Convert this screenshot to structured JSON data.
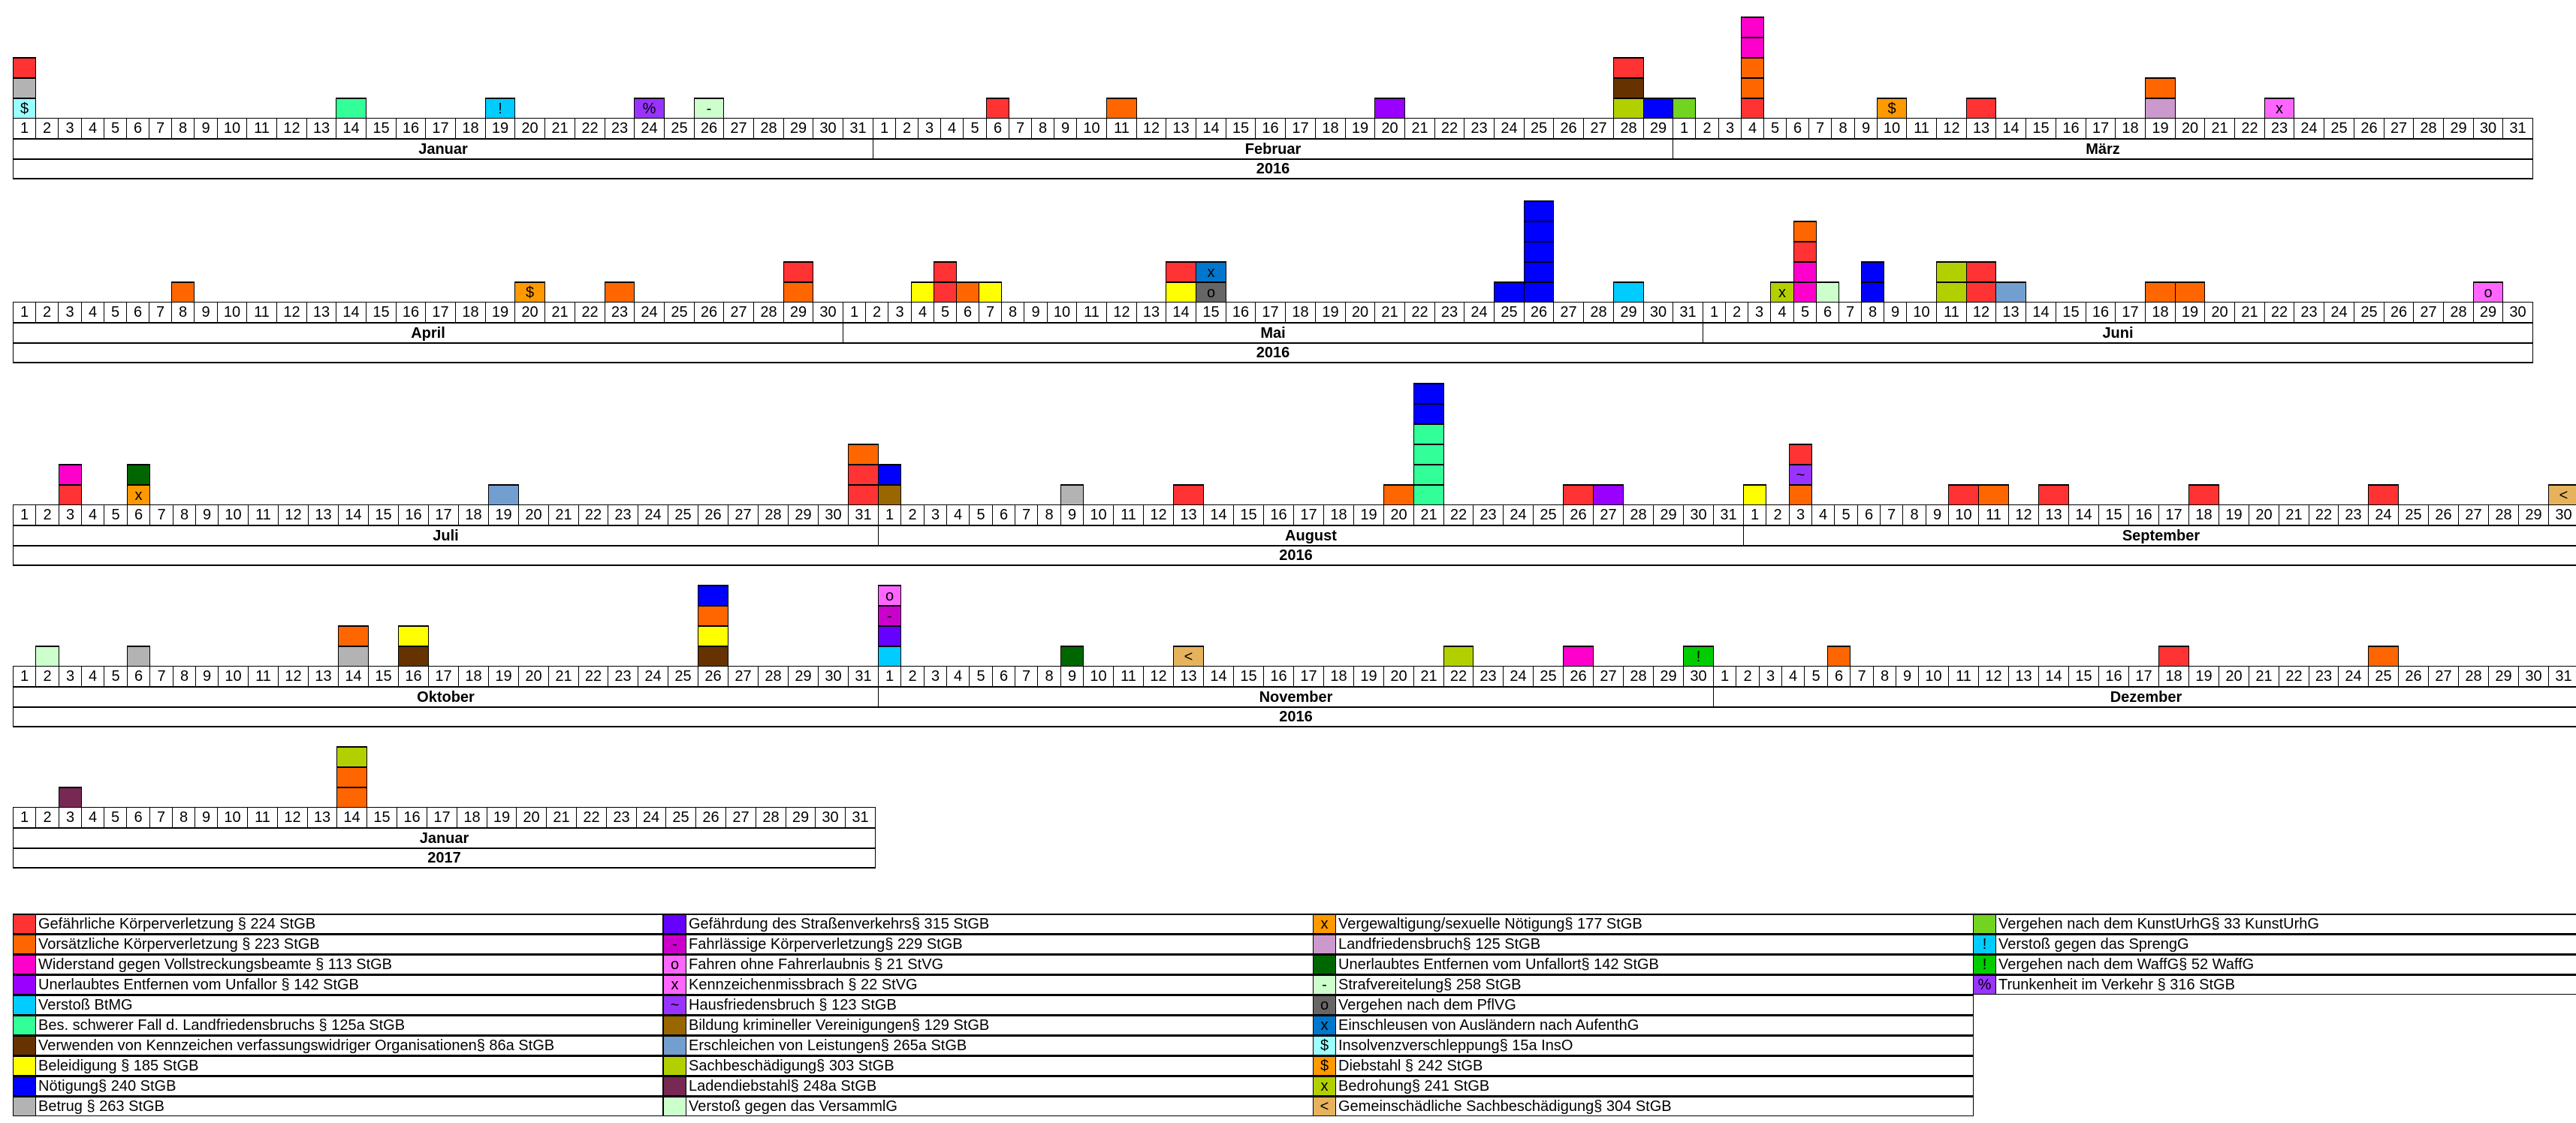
{
  "chart_data": {
    "type": "table",
    "title": "",
    "categories_legend": [
      {
        "id": "gkv",
        "label": "Gefährliche Körperverletzung § 224 StGB",
        "color": "#ff3333",
        "mark": ""
      },
      {
        "id": "vkv",
        "label": "Vorsätzliche Körperverletzung § 223 StGB",
        "color": "#ff6600",
        "mark": ""
      },
      {
        "id": "wvb",
        "label": "Widerstand gegen Vollstreckungsbeamte § 113 StGB",
        "color": "#ff00cc",
        "mark": ""
      },
      {
        "id": "ueu",
        "label": "Unerlaubtes Entfernen vom Unfallor § 142 StGB",
        "color": "#9900ff",
        "mark": ""
      },
      {
        "id": "btm",
        "label": "Verstoß BtMG",
        "color": "#00ccff",
        "mark": ""
      },
      {
        "id": "lfb",
        "label": "Bes. schwerer Fall d. Landfriedensbruchs § 125a StGB",
        "color": "#33ff99",
        "mark": ""
      },
      {
        "id": "kvo",
        "label": "Verwenden von Kennzeichen verfassungswidriger Organisationen§ 86a StGB",
        "color": "#663300",
        "mark": ""
      },
      {
        "id": "bel",
        "label": "Beleidigung § 185 StGB",
        "color": "#ffff00",
        "mark": ""
      },
      {
        "id": "noe",
        "label": "Nötigung§ 240 StGB",
        "color": "#0000ff",
        "mark": ""
      },
      {
        "id": "btr",
        "label": "Betrug § 263 StGB",
        "color": "#b3b3b3",
        "mark": ""
      },
      {
        "id": "gsv",
        "label": "Gefährdung des Straßenverkehrs§ 315 StGB",
        "color": "#6600ff",
        "mark": ""
      },
      {
        "id": "fkv",
        "label": "Fahrlässige Körperverletzung§ 229 StGB",
        "color": "#cc00cc",
        "mark": "-"
      },
      {
        "id": "fof",
        "label": "Fahren ohne Fahrerlaubnis § 21 StVG",
        "color": "#ff66ff",
        "mark": "o"
      },
      {
        "id": "kzm",
        "label": "Kennzeichenmissbrach § 22 StVG",
        "color": "#ff66ff",
        "mark": "x"
      },
      {
        "id": "hfb",
        "label": "Hausfriedensbruch § 123 StGB",
        "color": "#9933ff",
        "mark": "~"
      },
      {
        "id": "bkv",
        "label": "Bildung krimineller Vereinigungen§ 129 StGB",
        "color": "#996600",
        "mark": ""
      },
      {
        "id": "evl",
        "label": "Erschleichen von Leistungen§ 265a StGB",
        "color": "#729fcf",
        "mark": ""
      },
      {
        "id": "sbs",
        "label": "Sachbeschädigung§ 303 StGB",
        "color": "#b2d000",
        "mark": ""
      },
      {
        "id": "ldb",
        "label": "Ladendiebstahl§ 248a StGB",
        "color": "#772953",
        "mark": ""
      },
      {
        "id": "vvg",
        "label": "Verstoß gegen das VersammlG",
        "color": "#ccffcc",
        "mark": ""
      },
      {
        "id": "vgn",
        "label": "Vergewaltigung/sexuelle Nötigung§ 177 StGB",
        "color": "#ff9900",
        "mark": "x"
      },
      {
        "id": "lfr",
        "label": "Landfriedensbruch§ 125 StGB",
        "color": "#cc99cc",
        "mark": ""
      },
      {
        "id": "ueo",
        "label": "Unerlaubtes Entfernen vom Unfallort§ 142 StGB",
        "color": "#006600",
        "mark": ""
      },
      {
        "id": "stv",
        "label": "Strafvereitelung§ 258 StGB",
        "color": "#ccffcc",
        "mark": "-"
      },
      {
        "id": "pfl",
        "label": "Vergehen nach dem PflVG",
        "color": "#666666",
        "mark": "o"
      },
      {
        "id": "eaa",
        "label": "Einschleusen von Ausländern nach AufenthG",
        "color": "#0077cc",
        "mark": "x"
      },
      {
        "id": "ins",
        "label": "Insolvenzverschleppung§ 15a InsO",
        "color": "#99ffff",
        "mark": "$"
      },
      {
        "id": "dst",
        "label": "Diebstahl § 242 StGB",
        "color": "#ff9900",
        "mark": "$"
      },
      {
        "id": "bdr",
        "label": "Bedrohung§ 241 StGB",
        "color": "#b2d000",
        "mark": "x"
      },
      {
        "id": "gsb",
        "label": "Gemeinschädliche Sachbeschädigung§ 304 StGB",
        "color": "#e6b35c",
        "mark": "<"
      },
      {
        "id": "kug",
        "label": "Vergehen nach dem KunstUrhG§ 33 KunstUrhG",
        "color": "#72d321",
        "mark": ""
      },
      {
        "id": "spg",
        "label": "Verstoß gegen das SprengG",
        "color": "#00ccff",
        "mark": "!"
      },
      {
        "id": "wfg",
        "label": "Vergehen nach dem WaffG§ 52 WaffG",
        "color": "#00cc00",
        "mark": "!"
      },
      {
        "id": "tiv",
        "label": "Trunkenheit im Verkehr § 316 StGB",
        "color": "#9933ff",
        "mark": "%"
      }
    ],
    "legend_columns": [
      [
        "gkv",
        "vkv",
        "wvb",
        "ueu",
        "btm",
        "lfb",
        "kvo",
        "bel",
        "noe",
        "btr"
      ],
      [
        "gsv",
        "fkv",
        "fof",
        "kzm",
        "hfb",
        "bkv",
        "evl",
        "sbs",
        "ldb",
        "vvg"
      ],
      [
        "vgn",
        "lfr",
        "ueo",
        "stv",
        "pfl",
        "eaa",
        "ins",
        "dst",
        "bdr",
        "gsb"
      ],
      [
        "kug",
        "spg",
        "wfg",
        "tiv"
      ]
    ],
    "rows": [
      {
        "year": "2016",
        "months": [
          {
            "name": "Januar",
            "days": 31,
            "events": {
              "1": [
                "ins",
                "btr",
                "gkv"
              ],
              "14": [
                "lfb"
              ],
              "19": [
                "spg"
              ],
              "24": [
                "tiv"
              ],
              "26": [
                "stv"
              ]
            }
          },
          {
            "name": "Februar",
            "days": 29,
            "events": {
              "6": [
                "gkv"
              ],
              "11": [
                "vkv"
              ],
              "20": [
                "ueu"
              ],
              "28": [
                "sbs",
                "kvo",
                "gkv"
              ],
              "29": [
                "noe"
              ]
            }
          },
          {
            "name": "März",
            "days": 31,
            "events": {
              "1": [
                "kug"
              ],
              "4": [
                "gkv",
                "vkv",
                "vkv",
                "wvb",
                "wvb"
              ],
              "10": [
                "dst"
              ],
              "13": [
                "gkv"
              ],
              "19": [
                "lfr",
                "vkv"
              ],
              "23": [
                "kzm"
              ]
            }
          }
        ]
      },
      {
        "year": "2016",
        "months": [
          {
            "name": "April",
            "days": 30,
            "events": {
              "8": [
                "vkv"
              ],
              "20": [
                "dst"
              ],
              "23": [
                "vkv"
              ],
              "29": [
                "vkv",
                "gkv"
              ]
            }
          },
          {
            "name": "Mai",
            "days": 31,
            "events": {
              "4": [
                "bel"
              ],
              "5": [
                "gkv",
                "gkv"
              ],
              "6": [
                "vkv"
              ],
              "7": [
                "bel"
              ],
              "14": [
                "bel",
                "gkv"
              ],
              "15": [
                "pfl",
                "eaa"
              ],
              "25": [
                "noe"
              ],
              "26": [
                "noe",
                "noe",
                "noe",
                "noe",
                "noe"
              ],
              "29": [
                "btm"
              ]
            }
          },
          {
            "name": "Juni",
            "days": 30,
            "events": {
              "4": [
                "bdr"
              ],
              "5": [
                "wvb",
                "wvb",
                "gkv",
                "vkv"
              ],
              "6": [
                "vvg"
              ],
              "8": [
                "noe",
                "noe"
              ],
              "11": [
                "sbs",
                "sbs"
              ],
              "12": [
                "gkv",
                "gkv"
              ],
              "13": [
                "evl"
              ],
              "18": [
                "vkv"
              ],
              "19": [
                "vkv"
              ],
              "29": [
                "fof"
              ]
            }
          }
        ]
      },
      {
        "year": "2016",
        "months": [
          {
            "name": "Juli",
            "days": 31,
            "events": {
              "3": [
                "gkv",
                "wvb"
              ],
              "6": [
                "vgn",
                "ueo"
              ],
              "19": [
                "evl"
              ],
              "31": [
                "gkv",
                "gkv",
                "vkv"
              ]
            }
          },
          {
            "name": "August",
            "days": 31,
            "events": {
              "1": [
                "bkv",
                "noe"
              ],
              "9": [
                "btr"
              ],
              "13": [
                "gkv"
              ],
              "20": [
                "vkv"
              ],
              "21": [
                "lfb",
                "lfb",
                "lfb",
                "lfb",
                "noe",
                "noe"
              ],
              "26": [
                "gkv"
              ],
              "27": [
                "ueu"
              ]
            }
          },
          {
            "name": "September",
            "days": 30,
            "events": {
              "1": [
                "bel"
              ],
              "3": [
                "vkv",
                "hfb",
                "gkv"
              ],
              "10": [
                "gkv"
              ],
              "11": [
                "vkv"
              ],
              "13": [
                "gkv"
              ],
              "18": [
                "gkv"
              ],
              "24": [
                "gkv"
              ],
              "30": [
                "gsb"
              ]
            }
          }
        ]
      },
      {
        "year": "2016",
        "months": [
          {
            "name": "Oktober",
            "days": 31,
            "events": {
              "2": [
                "vvg"
              ],
              "6": [
                "btr"
              ],
              "14": [
                "btr",
                "vkv"
              ],
              "16": [
                "kvo",
                "bel"
              ],
              "26": [
                "kvo",
                "bel",
                "vkv",
                "noe"
              ]
            }
          },
          {
            "name": "November",
            "days": 30,
            "events": {
              "1": [
                "btm",
                "gsv",
                "fkv",
                "fof"
              ],
              "9": [
                "ueo"
              ],
              "13": [
                "gsb"
              ],
              "22": [
                "sbs"
              ],
              "26": [
                "wvb"
              ],
              "30": [
                "wfg"
              ]
            }
          },
          {
            "name": "Dezember",
            "days": 31,
            "events": {
              "6": [
                "vkv"
              ],
              "18": [
                "gkv"
              ],
              "25": [
                "vkv"
              ]
            }
          }
        ]
      },
      {
        "year": "2017",
        "months": [
          {
            "name": "Januar",
            "days": 31,
            "events": {
              "3": [
                "ldb"
              ],
              "14": [
                "vkv",
                "vkv",
                "sbs"
              ]
            }
          }
        ]
      }
    ]
  }
}
